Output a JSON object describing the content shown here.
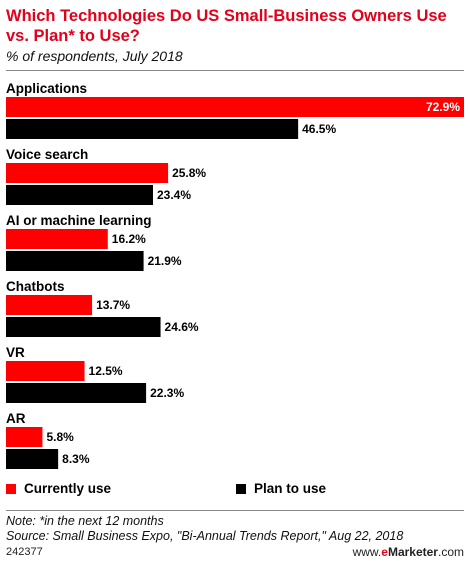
{
  "chart_data": {
    "type": "bar",
    "orientation": "horizontal",
    "title": "Which Technologies Do US Small-Business Owners Use vs. Plan* to Use?",
    "subtitle": "% of respondents, July 2018",
    "categories": [
      "Applications",
      "Voice search",
      "AI or machine learning",
      "Chatbots",
      "VR",
      "AR"
    ],
    "series": [
      {
        "name": "Currently use",
        "color": "#ff0000",
        "values": [
          72.9,
          25.8,
          16.2,
          13.7,
          12.5,
          5.8
        ]
      },
      {
        "name": "Plan to use",
        "color": "#000000",
        "values": [
          46.5,
          23.4,
          21.9,
          24.6,
          22.3,
          8.3
        ]
      }
    ],
    "value_suffix": "%",
    "xlim": [
      0,
      72.9
    ],
    "grid": false,
    "legend_position": "bottom"
  },
  "notes": {
    "note": "Note: *in the next 12 months",
    "source": "Source: Small Business Expo, \"Bi-Annual Trends Report,\" Aug 22, 2018"
  },
  "footer": {
    "chart_id": "242377",
    "brand_prefix": "www.",
    "brand_e": "e",
    "brand_main": "Marketer",
    "brand_suffix": ".com"
  }
}
